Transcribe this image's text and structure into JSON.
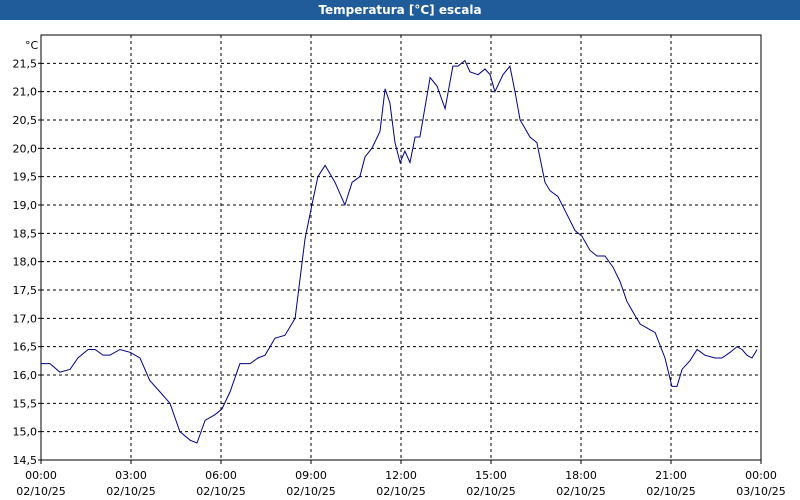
{
  "chart_data": {
    "type": "line",
    "title": "Temperatura [°C] escala",
    "y_unit": "°C",
    "color": "#00008b",
    "grid": true,
    "xlim": [
      0,
      24
    ],
    "xticks": [
      {
        "value": 0,
        "label": "00:00"
      },
      {
        "value": 3,
        "label": "03:00"
      },
      {
        "value": 6,
        "label": "06:00"
      },
      {
        "value": 9,
        "label": "09:00"
      },
      {
        "value": 12,
        "label": "12:00"
      },
      {
        "value": 15,
        "label": "15:00"
      },
      {
        "value": 18,
        "label": "18:00"
      },
      {
        "value": 21,
        "label": "21:00"
      },
      {
        "value": 24,
        "label": "00:00"
      }
    ],
    "xtick_dates": [
      "02/10/25",
      "02/10/25",
      "02/10/25",
      "02/10/25",
      "02/10/25",
      "02/10/25",
      "02/10/25",
      "02/10/25",
      "03/10/25"
    ],
    "ylim": [
      14.5,
      22.0
    ],
    "yticks": [
      {
        "value": 14.5,
        "label": "14,5"
      },
      {
        "value": 15,
        "label": "15,0"
      },
      {
        "value": 15.5,
        "label": "15,5"
      },
      {
        "value": 16,
        "label": "16,0"
      },
      {
        "value": 16.5,
        "label": "16,5"
      },
      {
        "value": 17,
        "label": "17,0"
      },
      {
        "value": 17.5,
        "label": "17,5"
      },
      {
        "value": 18,
        "label": "18,0"
      },
      {
        "value": 18.5,
        "label": "18,5"
      },
      {
        "value": 19,
        "label": "19,0"
      },
      {
        "value": 19.5,
        "label": "19,5"
      },
      {
        "value": 20,
        "label": "20,0"
      },
      {
        "value": 20.5,
        "label": "20,5"
      },
      {
        "value": 21,
        "label": "21,0"
      },
      {
        "value": 21.5,
        "label": "21,5"
      }
    ],
    "x": [
      0,
      0.3,
      0.63,
      0.97,
      1.23,
      1.57,
      1.8,
      2.07,
      2.3,
      2.63,
      2.97,
      3.3,
      3.63,
      3.97,
      4.3,
      4.63,
      4.97,
      5.2,
      5.47,
      5.8,
      6.03,
      6.3,
      6.63,
      6.97,
      7.23,
      7.47,
      7.8,
      8.13,
      8.47,
      8.8,
      9.03,
      9.23,
      9.47,
      9.8,
      10.13,
      10.37,
      10.63,
      10.8,
      11.03,
      11.3,
      11.47,
      11.63,
      11.8,
      11.97,
      12.13,
      12.3,
      12.47,
      12.63,
      12.97,
      13.2,
      13.47,
      13.73,
      13.9,
      14.13,
      14.3,
      14.57,
      14.8,
      14.97,
      15.13,
      15.4,
      15.63,
      15.8,
      15.97,
      16.3,
      16.53,
      16.8,
      16.97,
      17.23,
      17.47,
      17.8,
      18.03,
      18.3,
      18.53,
      18.8,
      19.07,
      19.3,
      19.53,
      19.8,
      19.97,
      20.3,
      20.47,
      20.8,
      21.03,
      21.2,
      21.37,
      21.63,
      21.87,
      22.13,
      22.47,
      22.7,
      22.97,
      23.2,
      23.37,
      23.53,
      23.7,
      23.87
    ],
    "values": [
      16.2,
      16.2,
      16.05,
      16.1,
      16.3,
      16.45,
      16.45,
      16.35,
      16.35,
      16.45,
      16.4,
      16.3,
      15.9,
      15.7,
      15.5,
      15.0,
      14.85,
      14.8,
      15.2,
      15.3,
      15.4,
      15.7,
      16.2,
      16.2,
      16.3,
      16.35,
      16.65,
      16.7,
      17.0,
      18.4,
      19.0,
      19.5,
      19.7,
      19.4,
      19.0,
      19.4,
      19.5,
      19.85,
      20.0,
      20.3,
      21.05,
      20.8,
      20.1,
      19.75,
      19.95,
      19.75,
      20.2,
      20.2,
      21.25,
      21.1,
      20.7,
      21.45,
      21.45,
      21.55,
      21.35,
      21.3,
      21.4,
      21.3,
      21.0,
      21.3,
      21.45,
      21.0,
      20.5,
      20.2,
      20.1,
      19.4,
      19.25,
      19.15,
      18.9,
      18.55,
      18.45,
      18.2,
      18.1,
      18.1,
      17.9,
      17.65,
      17.3,
      17.05,
      16.9,
      16.8,
      16.75,
      16.3,
      15.8,
      15.8,
      16.1,
      16.25,
      16.45,
      16.35,
      16.3,
      16.3,
      16.4,
      16.5,
      16.45,
      16.35,
      16.3,
      16.45
    ]
  }
}
